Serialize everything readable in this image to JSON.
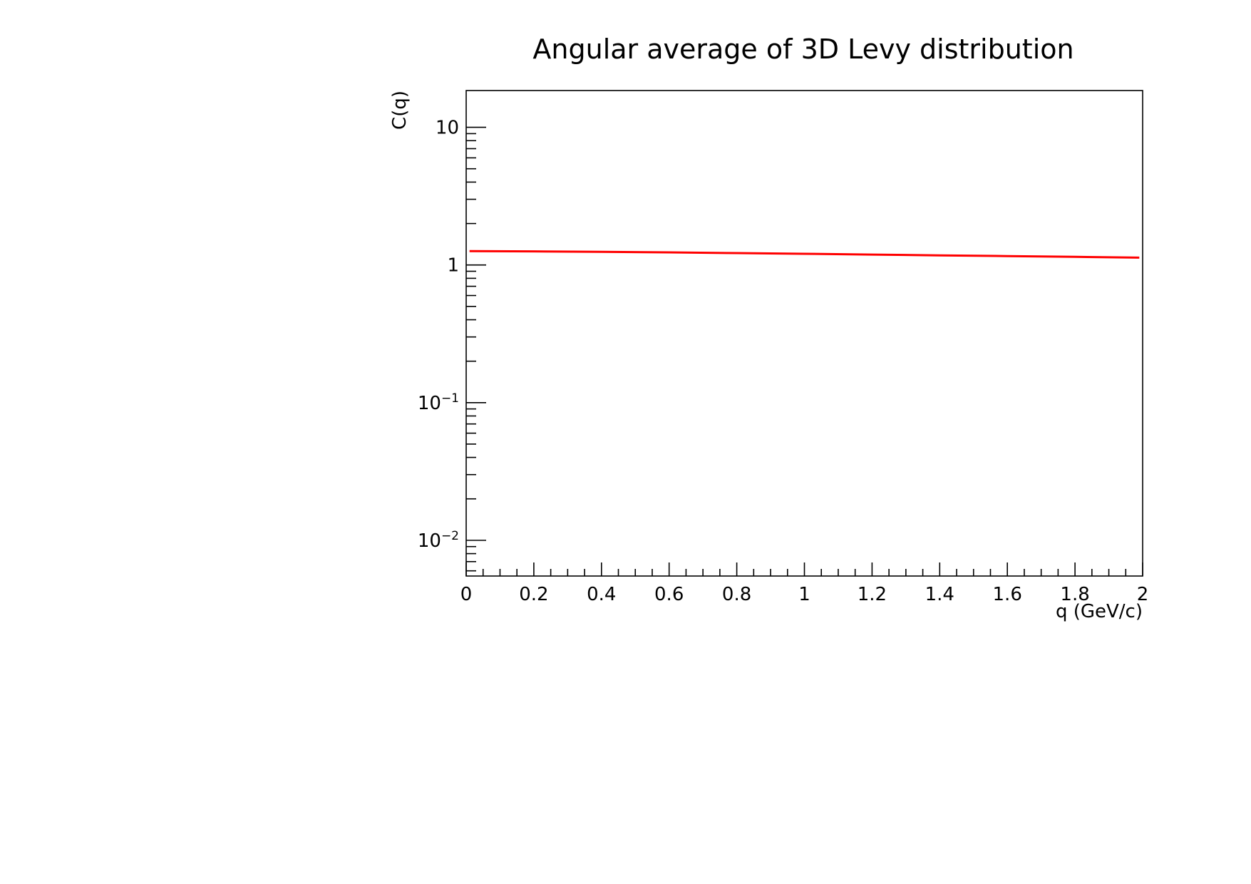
{
  "chart_data": {
    "type": "line",
    "title": "Angular average of 3D Levy distribution",
    "xlabel": "q (GeV/c)",
    "ylabel": "C(q)",
    "xlim": [
      0,
      2
    ],
    "ylim": [
      0.0055,
      18.5
    ],
    "yscale": "log",
    "grid": false,
    "x_ticks": [
      "0",
      "0.2",
      "0.4",
      "0.6",
      "0.8",
      "1",
      "1.2",
      "1.4",
      "1.6",
      "1.8",
      "2"
    ],
    "y_ticks": [
      {
        "value": 10,
        "base": "10",
        "exp": ""
      },
      {
        "value": 1,
        "base": "1",
        "exp": ""
      },
      {
        "value": 0.1,
        "base": "10",
        "exp": "−1"
      },
      {
        "value": 0.01,
        "base": "10",
        "exp": "−2"
      }
    ],
    "series": [
      {
        "color": "#ff0000",
        "x": [
          0.01,
          0.2,
          0.4,
          0.6,
          0.8,
          1.0,
          1.2,
          1.4,
          1.6,
          1.8,
          1.99
        ],
        "y": [
          1.26,
          1.255,
          1.245,
          1.235,
          1.22,
          1.205,
          1.19,
          1.175,
          1.16,
          1.145,
          1.13
        ]
      }
    ]
  }
}
